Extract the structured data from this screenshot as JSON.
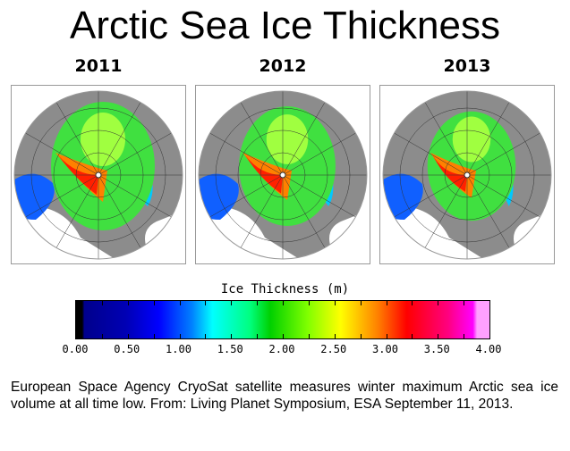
{
  "title": "Arctic Sea Ice Thickness",
  "panels": [
    {
      "year": "2011",
      "extent": 1.0
    },
    {
      "year": "2012",
      "extent": 0.93
    },
    {
      "year": "2013",
      "extent": 0.85
    }
  ],
  "colorbar": {
    "title": "Ice Thickness (m)",
    "min": 0,
    "max": 4,
    "ticks": [
      "0.00",
      "0.50",
      "1.00",
      "1.50",
      "2.00",
      "2.50",
      "3.00",
      "3.50",
      "4.00"
    ]
  },
  "caption": "European Space Agency CryoSat satellite measures winter maximum Arctic sea ice volume at all time low. From: Living Planet Symposium, ESA September 11, 2013.",
  "colors": {
    "land": "#8c8c8c",
    "thin": "#00c8ff",
    "mid": "#40e040",
    "thick": "#ff2000"
  }
}
